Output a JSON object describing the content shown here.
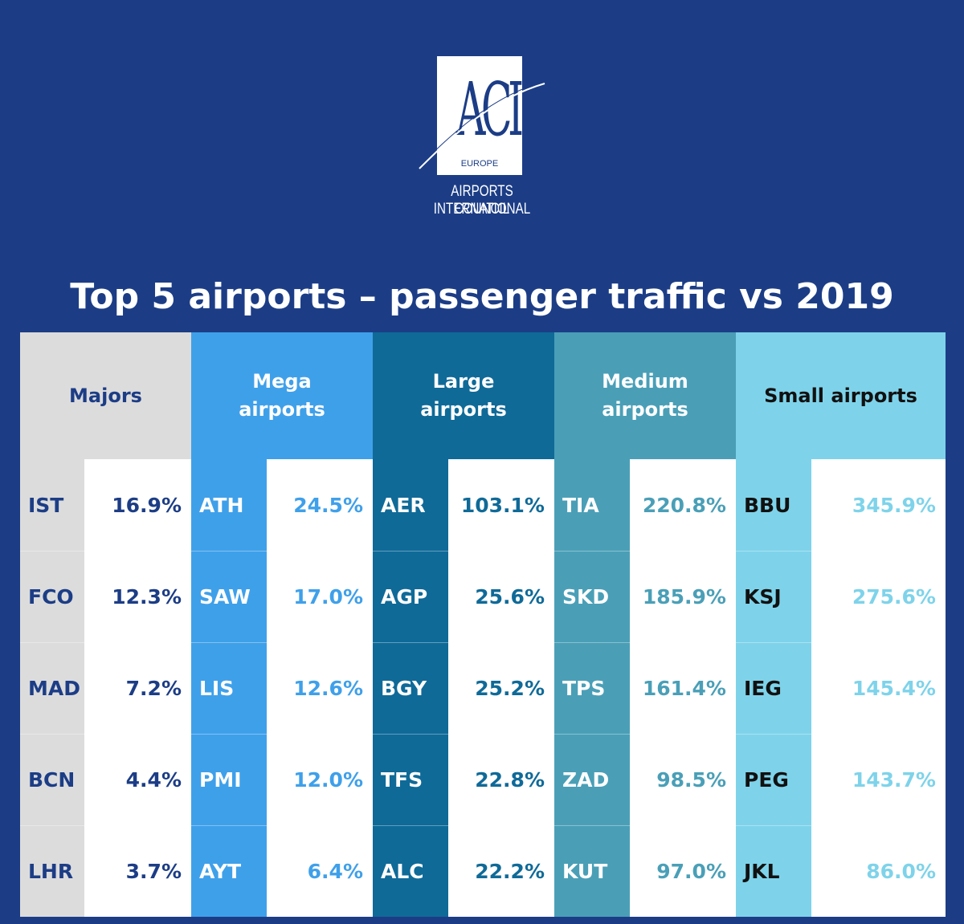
{
  "logo": {
    "letters": "ACI",
    "region": "EUROPE",
    "line1": "AIRPORTS COUNCIL",
    "line2": "INTERNATIONAL"
  },
  "chart_data": {
    "type": "table",
    "title": "Top 5 airports – passenger traffic vs 2019",
    "groups": [
      {
        "name": "Majors",
        "colors": {
          "header": "#dcdcdc",
          "code_bg": "#dcdcdc",
          "code_text": "#1c3d86",
          "value_text": "#1c3d86",
          "header_text": "#1c3d86"
        },
        "rows": [
          {
            "code": "IST",
            "value": "16.9%"
          },
          {
            "code": "FCO",
            "value": "12.3%"
          },
          {
            "code": "MAD",
            "value": "7.2%"
          },
          {
            "code": "BCN",
            "value": "4.4%"
          },
          {
            "code": "LHR",
            "value": "3.7%"
          }
        ]
      },
      {
        "name": "Mega airports",
        "colors": {
          "header": "#3fa0ea",
          "code_bg": "#3fa0ea",
          "code_text": "#ffffff",
          "value_text": "#3fa0ea",
          "header_text": "#ffffff"
        },
        "rows": [
          {
            "code": "ATH",
            "value": "24.5%"
          },
          {
            "code": "SAW",
            "value": "17.0%"
          },
          {
            "code": "LIS",
            "value": "12.6%"
          },
          {
            "code": "PMI",
            "value": "12.0%"
          },
          {
            "code": "AYT",
            "value": "6.4%"
          }
        ]
      },
      {
        "name": "Large airports",
        "colors": {
          "header": "#0f6a98",
          "code_bg": "#0f6a98",
          "code_text": "#ffffff",
          "value_text": "#0f6a98",
          "header_text": "#ffffff"
        },
        "rows": [
          {
            "code": "AER",
            "value": "103.1%"
          },
          {
            "code": "AGP",
            "value": "25.6%"
          },
          {
            "code": "BGY",
            "value": "25.2%"
          },
          {
            "code": "TFS",
            "value": "22.8%"
          },
          {
            "code": "ALC",
            "value": "22.2%"
          }
        ]
      },
      {
        "name": "Medium airports",
        "colors": {
          "header": "#4a9fb7",
          "code_bg": "#4a9fb7",
          "code_text": "#ffffff",
          "value_text": "#4a9fb7",
          "header_text": "#ffffff"
        },
        "rows": [
          {
            "code": "TIA",
            "value": "220.8%"
          },
          {
            "code": "SKD",
            "value": "185.9%"
          },
          {
            "code": "TPS",
            "value": "161.4%"
          },
          {
            "code": "ZAD",
            "value": "98.5%"
          },
          {
            "code": "KUT",
            "value": "97.0%"
          }
        ]
      },
      {
        "name": "Small airports",
        "colors": {
          "header": "#7ed3ea",
          "code_bg": "#7ed3ea",
          "code_text": "#111111",
          "value_text": "#7ed3ea",
          "header_text": "#111111"
        },
        "rows": [
          {
            "code": "BBU",
            "value": "345.9%"
          },
          {
            "code": "KSJ",
            "value": "275.6%"
          },
          {
            "code": "IEG",
            "value": "145.4%"
          },
          {
            "code": "PEG",
            "value": "143.7%"
          },
          {
            "code": "JKL",
            "value": "86.0%"
          }
        ]
      }
    ]
  }
}
